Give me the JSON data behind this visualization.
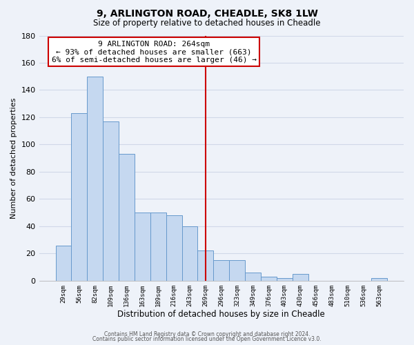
{
  "title": "9, ARLINGTON ROAD, CHEADLE, SK8 1LW",
  "subtitle": "Size of property relative to detached houses in Cheadle",
  "xlabel": "Distribution of detached houses by size in Cheadle",
  "ylabel": "Number of detached properties",
  "categories": [
    "29sqm",
    "56sqm",
    "82sqm",
    "109sqm",
    "136sqm",
    "163sqm",
    "189sqm",
    "216sqm",
    "243sqm",
    "269sqm",
    "296sqm",
    "323sqm",
    "349sqm",
    "376sqm",
    "403sqm",
    "430sqm",
    "456sqm",
    "483sqm",
    "510sqm",
    "536sqm",
    "563sqm"
  ],
  "values": [
    26,
    123,
    150,
    117,
    93,
    50,
    50,
    48,
    40,
    22,
    15,
    15,
    6,
    3,
    2,
    5,
    0,
    0,
    0,
    0,
    2
  ],
  "bar_color": "#c5d8f0",
  "bar_edge_color": "#6699cc",
  "background_color": "#eef2f9",
  "grid_color": "#d0d8e8",
  "vline_x_idx": 9,
  "vline_color": "#cc0000",
  "annotation_title": "9 ARLINGTON ROAD: 264sqm",
  "annotation_line1": "← 93% of detached houses are smaller (663)",
  "annotation_line2": "6% of semi-detached houses are larger (46) →",
  "annotation_box_color": "#ffffff",
  "annotation_box_edge": "#cc0000",
  "ylim": [
    0,
    180
  ],
  "yticks": [
    0,
    20,
    40,
    60,
    80,
    100,
    120,
    140,
    160,
    180
  ],
  "footer1": "Contains HM Land Registry data © Crown copyright and database right 2024.",
  "footer2": "Contains public sector information licensed under the Open Government Licence v3.0."
}
